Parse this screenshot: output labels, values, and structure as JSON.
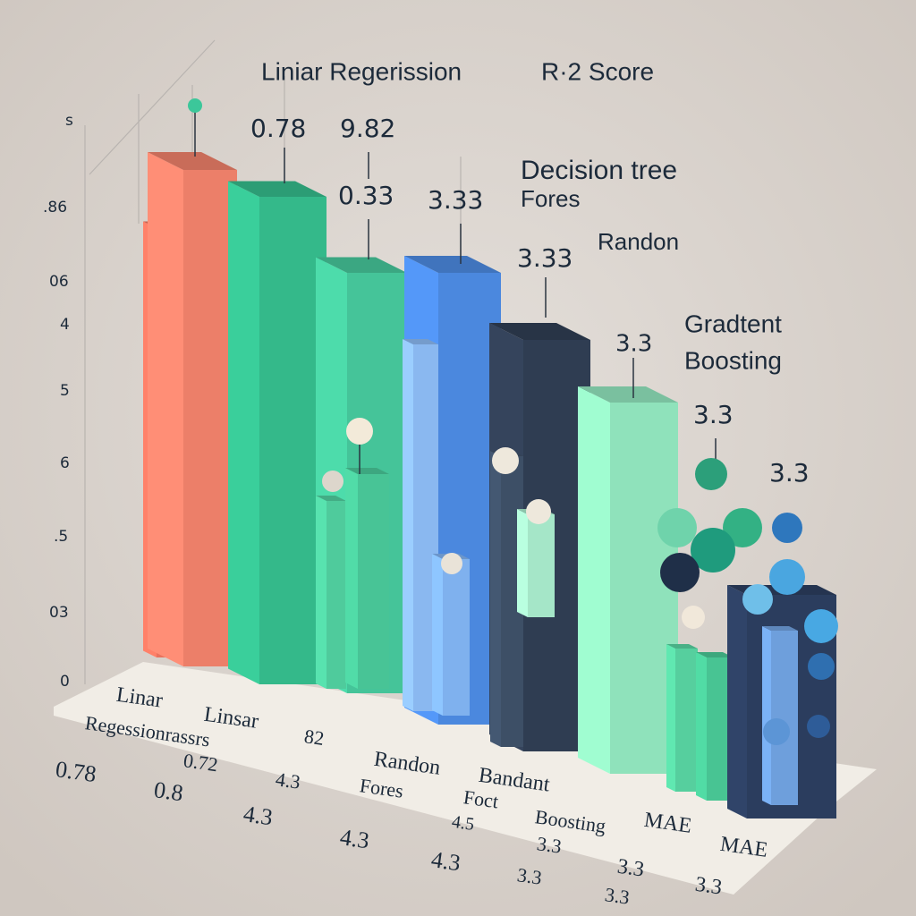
{
  "header": {
    "title": "Liniar Regerission",
    "metric": "R·2 Score"
  },
  "annotations": [
    "Decision tree",
    "Fores",
    "Randon",
    "Gradtent",
    "Boosting"
  ],
  "bar_labels": [
    "0.78",
    "9.82",
    "0.33",
    "3.33",
    "3.33",
    "3.3",
    "3.3",
    "3.3"
  ],
  "axis_labels": [
    "s",
    ".86",
    "06",
    "4",
    "5",
    "6",
    ".5",
    "03",
    "0"
  ],
  "footer_labels": [
    "Linar",
    "Linsar",
    "Regessionrassrs",
    "82",
    "0.78",
    "0.72",
    "Randon",
    "Bandant",
    "4.3",
    "0.8",
    "Fores",
    "Foct",
    "Boosting",
    "4.3",
    "4.3",
    "4.5",
    "MAE",
    "MAE",
    "4.3",
    "3.3",
    "3.3",
    "3.3",
    "3.3",
    "3.3"
  ]
}
